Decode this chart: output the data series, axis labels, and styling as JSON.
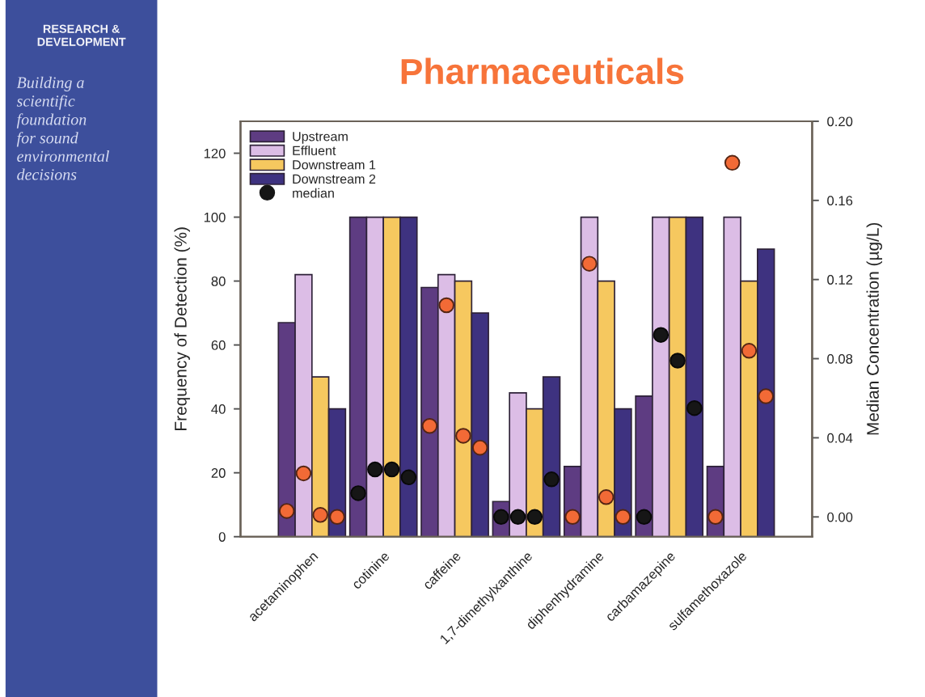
{
  "chart_data": {
    "type": "bar",
    "title": "Pharmaceuticals",
    "annotations": [
      "RESEARCH &\nDEVELOPMENT",
      "Building a\nscientific\nfoundation\nfor sound\nenvironmental\ndecisions"
    ],
    "categories": [
      "acetaminophen",
      "cotinine",
      "caffeine",
      "1,7-dimethylxanthine",
      "diphenhydramine",
      "carbamazepine",
      "sulfamethoxazole"
    ],
    "series": [
      {
        "name": "Upstream",
        "color": "#5e3c82",
        "values": [
          67,
          100,
          78,
          11,
          22,
          44,
          22
        ]
      },
      {
        "name": "Effluent",
        "color": "#dcbde6",
        "values": [
          82,
          100,
          82,
          45,
          100,
          100,
          100
        ]
      },
      {
        "name": "Downstream 1",
        "color": "#f6c85f",
        "values": [
          50,
          100,
          80,
          40,
          80,
          100,
          80
        ]
      },
      {
        "name": "Downstream 2",
        "color": "#3e3280",
        "values": [
          40,
          100,
          70,
          50,
          40,
          100,
          90
        ]
      },
      {
        "name": "median",
        "type": "scatter",
        "axis": "y2",
        "color": "#161616",
        "x": [
          "acetaminophen",
          "acetaminophen",
          "acetaminophen",
          "acetaminophen",
          "cotinine",
          "cotinine",
          "cotinine",
          "cotinine",
          "caffeine",
          "caffeine",
          "caffeine",
          "caffeine",
          "1,7-dimethylxanthine",
          "1,7-dimethylxanthine",
          "1,7-dimethylxanthine",
          "1,7-dimethylxanthine",
          "diphenhydramine",
          "diphenhydramine",
          "diphenhydramine",
          "diphenhydramine",
          "carbamazepine",
          "carbamazepine",
          "carbamazepine",
          "carbamazepine",
          "sulfamethoxazole",
          "sulfamethoxazole",
          "sulfamethoxazole",
          "sulfamethoxazole"
        ],
        "values": [
          0.003,
          0.022,
          0.001,
          0.0,
          0.012,
          0.024,
          0.024,
          0.02,
          0.046,
          0.107,
          0.041,
          0.035,
          0.0,
          0.0,
          0.0,
          0.019,
          0.0,
          0.128,
          0.01,
          0.0,
          0.0,
          0.092,
          0.079,
          0.055,
          0.0,
          0.179,
          0.084,
          0.061
        ],
        "colors": [
          "#f26a36",
          "#f26a36",
          "#f26a36",
          "#f26a36",
          "#161616",
          "#161616",
          "#161616",
          "#161616",
          "#f26a36",
          "#f26a36",
          "#f26a36",
          "#f26a36",
          "#161616",
          "#161616",
          "#161616",
          "#161616",
          "#f26a36",
          "#f26a36",
          "#f26a36",
          "#f26a36",
          "#161616",
          "#161616",
          "#161616",
          "#161616",
          "#f26a36",
          "#f26a36",
          "#f26a36",
          "#f26a36"
        ]
      }
    ],
    "ylabel": "Frequency of Detection (%)",
    "y2label": "Median Concentration (µg/L)",
    "ylim": [
      0,
      130
    ],
    "yticks": [
      0,
      20,
      40,
      60,
      80,
      100,
      120
    ],
    "y2lim": [
      -0.01,
      0.2
    ],
    "y2ticks": [
      {
        "value": 0,
        "label": "0.00"
      },
      {
        "value": 0.04,
        "label": "0.04"
      },
      {
        "value": 0.08,
        "label": "0.08"
      },
      {
        "value": 0.12,
        "label": "0.12"
      },
      {
        "value": 0.16,
        "label": "0.16"
      },
      {
        "value": 0.2,
        "label": "0.20"
      }
    ],
    "legend": "top left",
    "marker": "circle"
  }
}
